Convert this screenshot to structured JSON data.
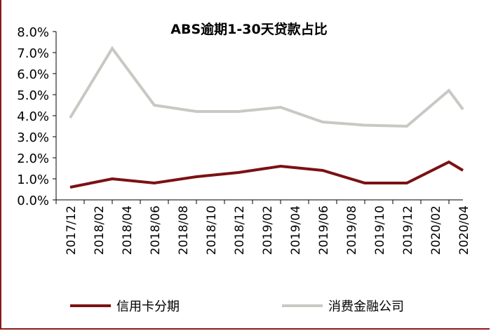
{
  "chart_data": {
    "type": "line",
    "title": "ABS逾期1-30天贷款占比",
    "xlabel": "",
    "ylabel": "",
    "categories": [
      "2017/12",
      "2018/02",
      "2018/04",
      "2018/06",
      "2018/08",
      "2018/10",
      "2018/12",
      "2019/02",
      "2019/04",
      "2019/06",
      "2019/08",
      "2019/10",
      "2019/12",
      "2020/02",
      "2020/04"
    ],
    "x": [
      "2017/12",
      "2018/03",
      "2018/06",
      "2018/09",
      "2018/12",
      "2019/03",
      "2019/06",
      "2019/09",
      "2019/12",
      "2020/03",
      "2020/04"
    ],
    "series": [
      {
        "name": "信用卡分期",
        "color": "#7b1113",
        "values": [
          0.6,
          1.0,
          0.8,
          1.1,
          1.3,
          1.6,
          1.4,
          0.8,
          0.8,
          1.8,
          1.4
        ]
      },
      {
        "name": "消费金融公司",
        "color": "#c7c9c3",
        "values": [
          3.9,
          7.2,
          4.5,
          4.2,
          4.2,
          4.4,
          3.7,
          3.55,
          3.5,
          5.2,
          4.3
        ]
      }
    ],
    "yticks": [
      "0.0%",
      "1.0%",
      "2.0%",
      "3.0%",
      "4.0%",
      "5.0%",
      "6.0%",
      "7.0%",
      "8.0%"
    ],
    "ylim": [
      0,
      8
    ],
    "grid": false,
    "legend": "bottom"
  }
}
